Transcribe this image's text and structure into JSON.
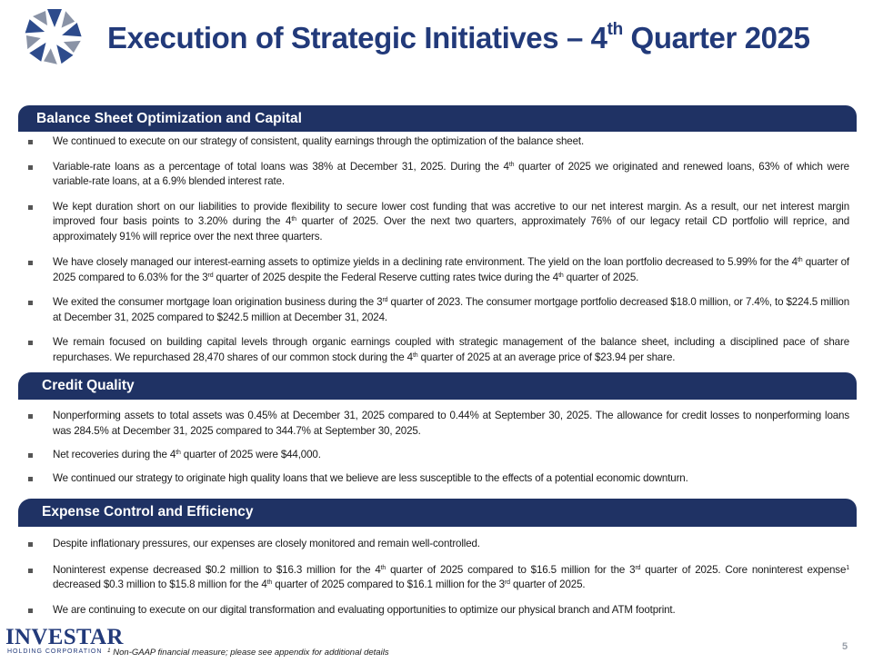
{
  "title": {
    "text_main": "Execution of Strategic Initiatives – 4",
    "text_sup": "th",
    "text_end": " Quarter 2025"
  },
  "sections": [
    {
      "heading": "Balance Sheet Optimization and Capital",
      "bullets": [
        [
          "We continued to execute on our strategy of consistent, quality earnings through the optimization of the balance sheet."
        ],
        [
          "Variable-rate loans as a percentage of total loans was 38% at December 31, 2025. During the 4",
          "th",
          " quarter of 2025 we originated and renewed loans, 63% of which were variable-rate loans, at a 6.9% blended interest rate."
        ],
        [
          "We kept duration short on our liabilities to provide flexibility to secure lower cost funding that was accretive to our net interest margin. As a result, our net interest margin improved four basis points to 3.20% during the 4",
          "th",
          " quarter of 2025. Over the next two quarters, approximately 76% of our legacy retail CD portfolio will reprice, and approximately 91% will reprice over the next three quarters."
        ],
        [
          "We have closely managed our interest-earning assets to optimize yields in a declining rate environment. The yield on the loan portfolio decreased to 5.99% for the 4",
          "th",
          " quarter of 2025 compared to 6.03% for the 3",
          "rd",
          " quarter of 2025 despite the Federal Reserve cutting rates twice during the 4",
          "th",
          " quarter of 2025."
        ],
        [
          "We exited the consumer mortgage loan origination business during the 3",
          "rd",
          " quarter of 2023. The consumer mortgage portfolio decreased $18.0 million, or 7.4%, to $224.5 million at December 31, 2025 compared to $242.5 million at December 31, 2024."
        ],
        [
          "We remain focused on building capital levels through organic earnings coupled with strategic management of the balance sheet, including a disciplined pace of share repurchases. We repurchased 28,470 shares of our common stock during the 4",
          "th",
          " quarter of 2025 at an average price of $23.94 per share."
        ]
      ]
    },
    {
      "heading": "Credit Quality",
      "bullets": [
        [
          "Nonperforming assets to total assets was 0.45% at December 31, 2025 compared to 0.44% at September 30, 2025. The allowance for credit losses to nonperforming loans was 284.5% at December 31, 2025 compared to 344.7% at September 30, 2025."
        ],
        [
          "Net recoveries during the 4",
          "th",
          " quarter of 2025 were $44,000."
        ],
        [
          "We continued our strategy to originate high quality loans that we believe are less susceptible to the effects of a potential economic downturn."
        ]
      ]
    },
    {
      "heading": "Expense Control and Efficiency",
      "bullets": [
        [
          "Despite inflationary pressures, our expenses are closely monitored and remain well-controlled."
        ],
        [
          "Noninterest expense decreased $0.2 million to $16.3 million for the 4",
          "th",
          " quarter of 2025 compared to $16.5 million for the 3",
          "rd",
          " quarter of 2025. Core noninterest expense",
          "1",
          " decreased $0.3 million to $15.8 million for the 4",
          "th",
          " quarter of 2025 compared to $16.1 million for the 3",
          "rd",
          " quarter of 2025."
        ],
        [
          "We are continuing to execute on our digital transformation and evaluating opportunities to optimize our physical branch and ATM footprint."
        ]
      ]
    }
  ],
  "footer": {
    "logo_word": "INVESTAR",
    "logo_sub": "HOLDING CORPORATION",
    "footnote_mark": "1",
    "footnote_text": " Non-GAAP financial measure; please see appendix for additional details",
    "page_number": "5"
  },
  "colors": {
    "navy": "#1f3264",
    "title_blue": "#223a7a",
    "logo_grey": "#8a93a6"
  }
}
